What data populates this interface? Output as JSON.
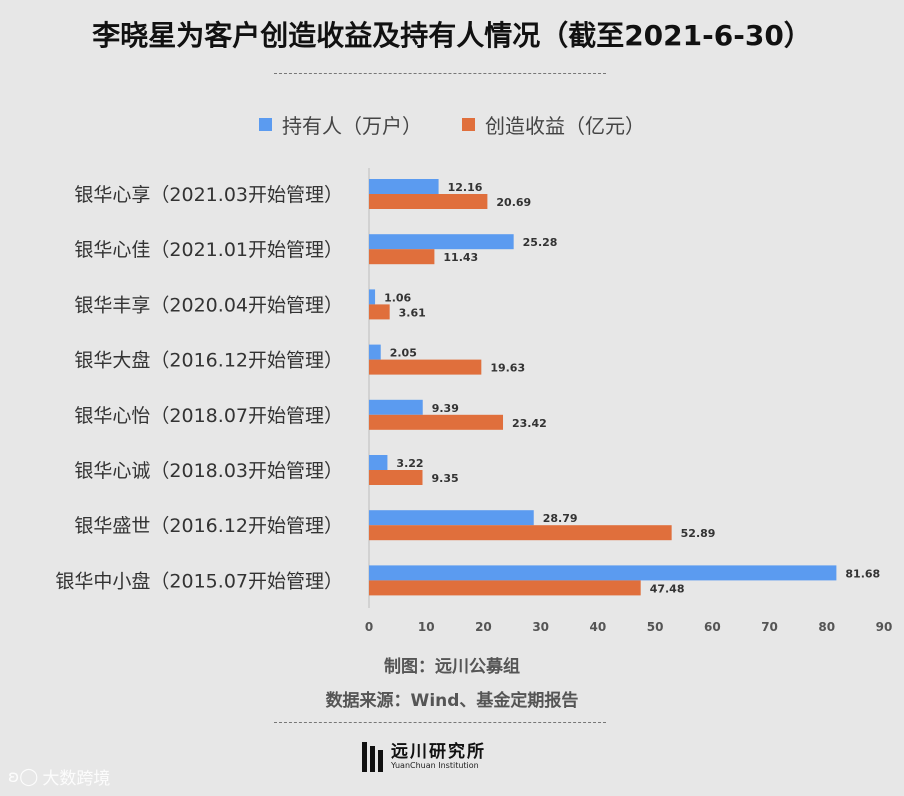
{
  "title": "李晓星为客户创造收益及持有人情况（截至2021-6-30）",
  "legend": {
    "holders": "持有人（万户）",
    "returns": "创造收益（亿元）"
  },
  "footer": {
    "maker": "制图：远川公募组",
    "source": "数据来源：Wind、基金定期报告"
  },
  "logo": {
    "name": "远川研究所",
    "sub": "YuanChuan Institution"
  },
  "watermark": "大数跨境",
  "colors": {
    "holders": "#5b9bf0",
    "returns": "#e06f3c"
  },
  "chart_data": {
    "type": "bar",
    "orientation": "horizontal",
    "categories": [
      "银华心享（2021.03开始管理）",
      "银华心佳（2021.01开始管理）",
      "银华丰享（2020.04开始管理）",
      "银华大盘（2016.12开始管理）",
      "银华心怡（2018.07开始管理）",
      "银华心诚（2018.03开始管理）",
      "银华盛世（2016.12开始管理）",
      "银华中小盘（2015.07开始管理）"
    ],
    "series": [
      {
        "name": "持有人（万户）",
        "values": [
          12.16,
          25.28,
          1.06,
          2.05,
          9.39,
          3.22,
          28.79,
          81.68
        ]
      },
      {
        "name": "创造收益（亿元）",
        "values": [
          20.69,
          11.43,
          3.61,
          19.63,
          23.42,
          9.35,
          52.89,
          47.48
        ]
      }
    ],
    "xlim": [
      0,
      90
    ],
    "xticks": [
      0,
      10,
      20,
      30,
      40,
      50,
      60,
      70,
      80,
      90
    ],
    "grid": false,
    "legend_position": "top"
  }
}
